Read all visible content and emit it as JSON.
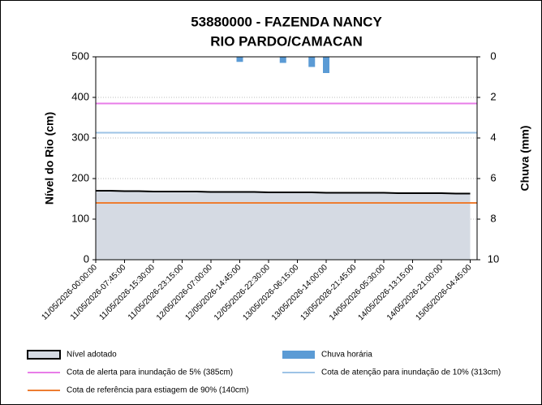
{
  "chart_data": {
    "type": "area",
    "title": [
      "53880000 - FAZENDA NANCY",
      "RIO PARDO/CAMACAN"
    ],
    "ylabel": "Nível do Rio (cm)",
    "y2label": "Chuva (mm)",
    "categories": [
      "11/05/2026-00:00:00",
      null,
      "11/05/2026-07:45:00",
      null,
      "11/05/2026-15:30:00",
      null,
      "11/05/2026-23:15:00",
      null,
      "12/05/2026-07:00:00",
      null,
      "12/05/2026-14:45:00",
      null,
      "12/05/2026-22:30:00",
      null,
      "13/05/2026-06:15:00",
      null,
      "13/05/2026-14:00:00",
      null,
      "13/05/2026-21:45:00",
      null,
      "14/05/2026-05:30:00",
      null,
      "14/05/2026-13:15:00",
      null,
      "14/05/2026-21:00:00",
      null,
      "15/05/2026-04:45:00"
    ],
    "series": [
      {
        "name": "Nível adotado",
        "color": "#d5dae3",
        "values": [
          170,
          170,
          169,
          169,
          168,
          168,
          168,
          168,
          167,
          167,
          167,
          167,
          166,
          166,
          166,
          166,
          165,
          165,
          165,
          165,
          165,
          164,
          164,
          164,
          164,
          163,
          163
        ]
      },
      {
        "name": "Chuva horária",
        "color": "#5b9bd5",
        "axis": "y2",
        "values": [
          0,
          0,
          0,
          0,
          0,
          0,
          0,
          0,
          0,
          0,
          0.25,
          0,
          0,
          0.3,
          0,
          0.5,
          0.8,
          0,
          0,
          0,
          0,
          0,
          0,
          0,
          0,
          0,
          0
        ]
      }
    ],
    "reference_lines": [
      {
        "name": "Cota de alerta para inundação de 5% (385cm)",
        "value": 385,
        "color": "#e87de8"
      },
      {
        "name": "Cota de atenção para inundação de 10% (313cm)",
        "value": 313,
        "color": "#9dc3e6"
      },
      {
        "name": "Cota de referência para estiagem de 90% (140cm)",
        "value": 140,
        "color": "#ed7d31"
      }
    ],
    "ylim": [
      0,
      500
    ],
    "yticks": [
      0,
      100,
      200,
      300,
      400,
      500
    ],
    "y2lim": [
      0,
      10
    ],
    "y2ticks": [
      0,
      2,
      4,
      6,
      8,
      10
    ],
    "y2_inverted": true,
    "grid": true
  }
}
